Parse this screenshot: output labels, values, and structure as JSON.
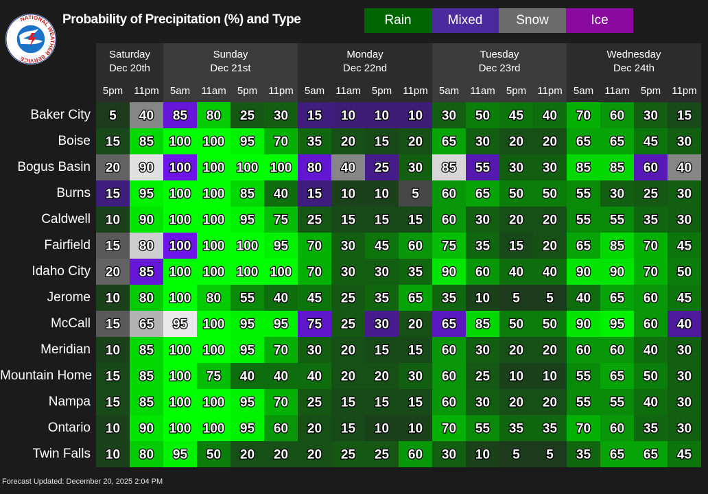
{
  "title": "Probability of Precipitation (%) and Type",
  "logo": {
    "text": "NATIONAL WEATHER SERVICE"
  },
  "legend": [
    {
      "label": "Rain",
      "color": "#006400"
    },
    {
      "label": "Mixed",
      "color": "#4b2a9e"
    },
    {
      "label": "Snow",
      "color": "#6b6b6b"
    },
    {
      "label": "Ice",
      "color": "#8a0aa0"
    }
  ],
  "footer": "Forecast Updated: December 20, 2025 2:04 PM",
  "chart_data": {
    "type": "heatmap",
    "days": [
      {
        "day": "Saturday",
        "date": "Dec 20th"
      },
      {
        "day": "Sunday",
        "date": "Dec 21st"
      },
      {
        "day": "Monday",
        "date": "Dec 22nd"
      },
      {
        "day": "Tuesday",
        "date": "Dec 23rd"
      },
      {
        "day": "Wednesday",
        "date": "Dec 24th"
      }
    ],
    "times": [
      "5pm",
      "11pm",
      "5am",
      "11am",
      "5pm",
      "11pm",
      "5am",
      "11am",
      "5pm",
      "11pm",
      "5am",
      "11am",
      "5pm",
      "11pm",
      "5am",
      "11am",
      "5pm",
      "11pm"
    ],
    "locations": [
      "Baker City",
      "Boise",
      "Bogus Basin",
      "Burns",
      "Caldwell",
      "Fairfield",
      "Idaho City",
      "Jerome",
      "McCall",
      "Meridian",
      "Mountain Home",
      "Nampa",
      "Ontario",
      "Twin Falls"
    ],
    "values": [
      [
        5,
        40,
        85,
        80,
        25,
        30,
        15,
        10,
        10,
        10,
        30,
        50,
        45,
        40,
        70,
        60,
        30,
        15
      ],
      [
        15,
        85,
        100,
        100,
        95,
        70,
        35,
        20,
        15,
        20,
        65,
        30,
        20,
        20,
        65,
        65,
        45,
        30
      ],
      [
        20,
        90,
        100,
        100,
        100,
        100,
        80,
        40,
        25,
        30,
        85,
        55,
        30,
        30,
        85,
        85,
        60,
        40
      ],
      [
        15,
        95,
        100,
        100,
        85,
        40,
        15,
        10,
        10,
        5,
        60,
        65,
        50,
        50,
        55,
        30,
        25,
        30
      ],
      [
        10,
        90,
        100,
        100,
        95,
        75,
        25,
        15,
        15,
        15,
        60,
        30,
        20,
        20,
        55,
        55,
        35,
        30
      ],
      [
        15,
        80,
        100,
        100,
        100,
        95,
        70,
        30,
        45,
        60,
        75,
        35,
        15,
        20,
        65,
        85,
        70,
        45
      ],
      [
        20,
        85,
        100,
        100,
        100,
        100,
        70,
        30,
        30,
        35,
        90,
        60,
        40,
        40,
        90,
        90,
        70,
        50
      ],
      [
        10,
        80,
        100,
        80,
        55,
        40,
        45,
        25,
        35,
        65,
        35,
        10,
        5,
        5,
        40,
        65,
        60,
        45
      ],
      [
        15,
        65,
        95,
        100,
        95,
        95,
        75,
        25,
        30,
        20,
        65,
        85,
        50,
        50,
        90,
        95,
        60,
        40
      ],
      [
        10,
        85,
        100,
        100,
        95,
        70,
        30,
        20,
        15,
        15,
        60,
        30,
        20,
        20,
        60,
        60,
        40,
        30
      ],
      [
        15,
        85,
        100,
        75,
        40,
        40,
        40,
        20,
        20,
        30,
        60,
        25,
        10,
        10,
        55,
        65,
        50,
        30
      ],
      [
        15,
        85,
        100,
        100,
        95,
        70,
        25,
        15,
        15,
        15,
        60,
        30,
        20,
        20,
        55,
        55,
        40,
        30
      ],
      [
        10,
        90,
        100,
        100,
        95,
        60,
        20,
        15,
        10,
        10,
        70,
        55,
        35,
        35,
        70,
        60,
        35,
        30
      ],
      [
        10,
        80,
        95,
        50,
        20,
        20,
        20,
        25,
        25,
        60,
        30,
        10,
        5,
        5,
        35,
        65,
        65,
        45
      ]
    ],
    "types": [
      [
        "R",
        "S",
        "M",
        "R",
        "R",
        "R",
        "M",
        "M",
        "M",
        "M",
        "R",
        "R",
        "R",
        "R",
        "R",
        "R",
        "R",
        "R"
      ],
      [
        "R",
        "R",
        "R",
        "R",
        "R",
        "R",
        "R",
        "R",
        "R",
        "R",
        "R",
        "R",
        "R",
        "R",
        "R",
        "R",
        "R",
        "R"
      ],
      [
        "S",
        "S",
        "M",
        "R",
        "R",
        "R",
        "M",
        "S",
        "M",
        "R",
        "S",
        "M",
        "R",
        "R",
        "R",
        "R",
        "M",
        "S"
      ],
      [
        "M",
        "R",
        "R",
        "R",
        "R",
        "R",
        "M",
        "R",
        "R",
        "S",
        "R",
        "R",
        "R",
        "R",
        "R",
        "R",
        "R",
        "R"
      ],
      [
        "R",
        "R",
        "R",
        "R",
        "R",
        "R",
        "R",
        "R",
        "R",
        "R",
        "R",
        "R",
        "R",
        "R",
        "R",
        "R",
        "R",
        "R"
      ],
      [
        "S",
        "S",
        "M",
        "R",
        "R",
        "R",
        "R",
        "R",
        "R",
        "R",
        "R",
        "R",
        "R",
        "R",
        "R",
        "R",
        "R",
        "R"
      ],
      [
        "S",
        "M",
        "R",
        "R",
        "R",
        "R",
        "R",
        "R",
        "R",
        "R",
        "R",
        "R",
        "R",
        "R",
        "R",
        "R",
        "R",
        "R"
      ],
      [
        "R",
        "R",
        "R",
        "R",
        "R",
        "R",
        "R",
        "R",
        "R",
        "R",
        "R",
        "R",
        "R",
        "R",
        "R",
        "R",
        "R",
        "R"
      ],
      [
        "S",
        "S",
        "S",
        "R",
        "R",
        "R",
        "M",
        "R",
        "M",
        "R",
        "M",
        "R",
        "R",
        "R",
        "R",
        "R",
        "R",
        "M"
      ],
      [
        "R",
        "R",
        "R",
        "R",
        "R",
        "R",
        "R",
        "R",
        "R",
        "R",
        "R",
        "R",
        "R",
        "R",
        "R",
        "R",
        "R",
        "R"
      ],
      [
        "R",
        "R",
        "R",
        "R",
        "R",
        "R",
        "R",
        "R",
        "R",
        "R",
        "R",
        "R",
        "R",
        "R",
        "R",
        "R",
        "R",
        "R"
      ],
      [
        "R",
        "R",
        "R",
        "R",
        "R",
        "R",
        "R",
        "R",
        "R",
        "R",
        "R",
        "R",
        "R",
        "R",
        "R",
        "R",
        "R",
        "R"
      ],
      [
        "R",
        "R",
        "R",
        "R",
        "R",
        "R",
        "R",
        "R",
        "R",
        "R",
        "R",
        "R",
        "R",
        "R",
        "R",
        "R",
        "R",
        "R"
      ],
      [
        "R",
        "R",
        "R",
        "R",
        "R",
        "R",
        "R",
        "R",
        "R",
        "R",
        "R",
        "R",
        "R",
        "R",
        "R",
        "R",
        "R",
        "R"
      ]
    ],
    "type_key": {
      "R": "Rain",
      "M": "Mixed",
      "S": "Snow",
      "I": "Ice"
    },
    "value_range": [
      0,
      100
    ]
  }
}
